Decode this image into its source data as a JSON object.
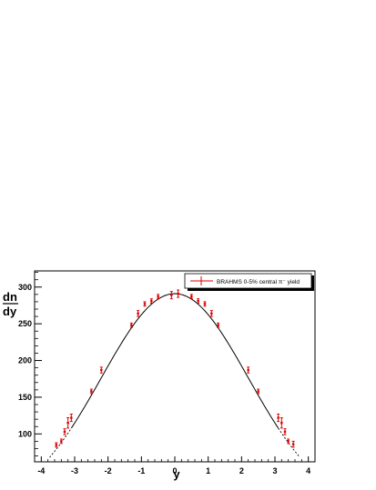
{
  "chart_data": {
    "type": "scatter",
    "xlabel": "y",
    "ylabel_top": "dn",
    "ylabel_bottom": "dy",
    "xlim": [
      -4.2,
      4.2
    ],
    "ylim": [
      62,
      322
    ],
    "x_ticks": [
      -4,
      -3,
      -2,
      -1,
      0,
      1,
      2,
      3,
      4
    ],
    "x_tick_labels": [
      "-4",
      "-3",
      "-2",
      "-1",
      "0",
      "1",
      "2",
      "3",
      "4"
    ],
    "y_ticks": [
      100,
      150,
      200,
      250,
      300
    ],
    "y_tick_labels": [
      "100",
      "150",
      "200",
      "250",
      "300"
    ],
    "legend": {
      "position": "top-right",
      "label": "BRAHMS 0-5% central π⁻ yield"
    },
    "colors": {
      "points": "#dd0000",
      "curve": "#000000"
    },
    "fit_curve": {
      "description_shape": "gaussian",
      "amplitude": 291,
      "mean": 0,
      "sigma": 2.2,
      "solid_range": [
        -3.1,
        3.1
      ],
      "dashed_range": [
        -3.75,
        3.75
      ]
    },
    "series": [
      {
        "x": [
          -3.55,
          -3.4,
          -3.3,
          -3.2,
          -3.1,
          -2.5,
          -2.2,
          -1.3,
          -1.1,
          -0.9,
          -0.7,
          -0.5,
          -0.1,
          0.1,
          0.5,
          0.7,
          0.9,
          1.1,
          1.3,
          2.2,
          2.5,
          3.1,
          3.2,
          3.3,
          3.4,
          3.55
        ],
        "y": [
          85,
          90,
          103,
          115,
          122,
          158,
          187,
          248,
          264,
          277,
          281,
          287,
          289,
          291,
          287,
          281,
          277,
          264,
          248,
          187,
          158,
          122,
          115,
          103,
          90,
          86
        ],
        "err": [
          3,
          3,
          4,
          7,
          5,
          3,
          4,
          3,
          4,
          3,
          3,
          3,
          5,
          5,
          3,
          3,
          3,
          4,
          3,
          4,
          3,
          5,
          7,
          4,
          3,
          4
        ]
      }
    ]
  }
}
